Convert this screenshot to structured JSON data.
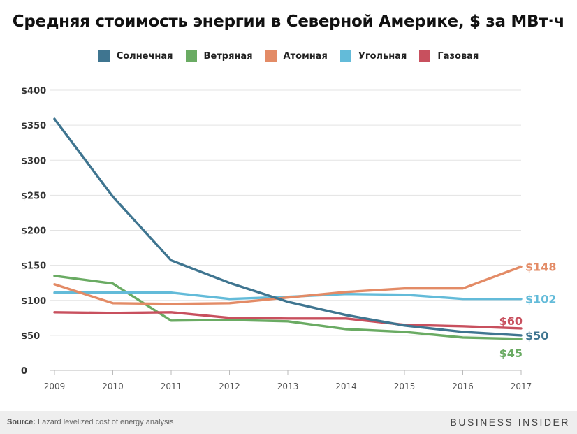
{
  "title": "Средняя стоимость энергии в Северной Америке, $ за МВт·ч",
  "source_label": "Source:",
  "source_text": "Lazard levelized cost of energy analysis",
  "brand": "BUSINESS INSIDER",
  "chart_data": {
    "type": "line",
    "title": "Средняя стоимость энергии в Северной Америке, $ за МВт·ч",
    "xlabel": "",
    "ylabel": "",
    "x": [
      "2009",
      "2010",
      "2011",
      "2012",
      "2013",
      "2014",
      "2015",
      "2016",
      "2017"
    ],
    "ylim": [
      0,
      400
    ],
    "yticks": [
      0,
      50,
      100,
      150,
      200,
      250,
      300,
      350,
      400
    ],
    "ytick_labels": [
      "0",
      "$50",
      "$100",
      "$150",
      "$200",
      "$250",
      "$300",
      "$350",
      "$400"
    ],
    "grid": true,
    "legend_position": "top-center",
    "series": [
      {
        "name": "Солнечная",
        "color": "#3f7590",
        "values": [
          359,
          248,
          157,
          125,
          98,
          79,
          64,
          55,
          50
        ],
        "end_label": "$50"
      },
      {
        "name": "Ветряная",
        "color": "#6aab63",
        "values": [
          135,
          124,
          71,
          72,
          70,
          59,
          55,
          47,
          45
        ],
        "end_label": "$45"
      },
      {
        "name": "Атомная",
        "color": "#e38b66",
        "values": [
          123,
          96,
          95,
          96,
          104,
          112,
          117,
          117,
          148
        ],
        "end_label": "$148"
      },
      {
        "name": "Угольная",
        "color": "#63bbd9",
        "values": [
          111,
          111,
          111,
          102,
          105,
          109,
          108,
          102,
          102
        ],
        "end_label": "$102"
      },
      {
        "name": "Газовая",
        "color": "#c8505e",
        "values": [
          83,
          82,
          83,
          75,
          74,
          74,
          65,
          63,
          60
        ],
        "end_label": "$60"
      }
    ]
  }
}
